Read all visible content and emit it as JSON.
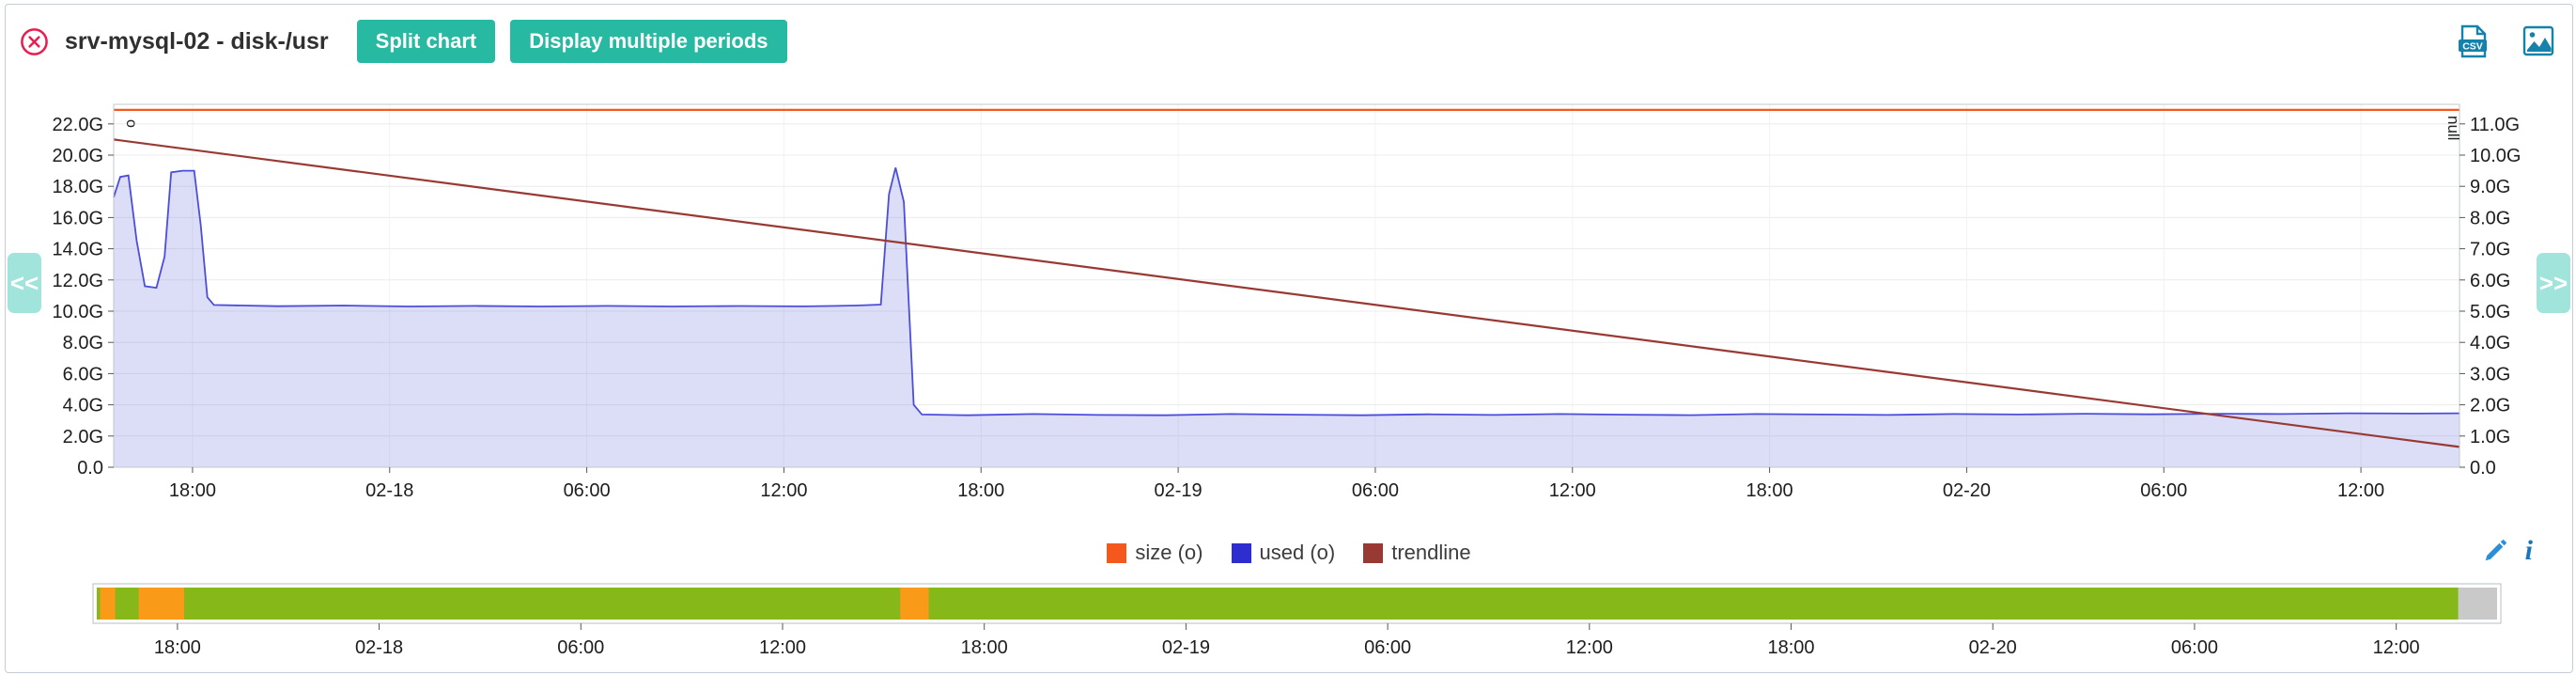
{
  "theme": {
    "accent_teal": "#27b9a1",
    "close_red": "#e81e50",
    "export_icon_blue": "#1482aa",
    "tool_icon_blue": "#2a8fd8",
    "ok_green": "#85b818",
    "warning_orange": "#fa9a19",
    "nodata_gray": "#c9c9c9"
  },
  "header": {
    "title": "srv-mysql-02 - disk-/usr",
    "split_chart_label": "Split chart",
    "multiple_periods_label": "Display multiple periods",
    "export": {
      "csv_label": "CSV"
    }
  },
  "nav": {
    "prev_label": "<<",
    "next_label": ">>"
  },
  "tools": {
    "info_glyph": "i"
  },
  "legend": {
    "items": [
      {
        "id": "size",
        "label": "size (o)",
        "color": "#f4581c"
      },
      {
        "id": "used",
        "label": "used (o)",
        "color": "#2d2dd0"
      },
      {
        "id": "trendline",
        "label": "trendline",
        "color": "#993933"
      }
    ]
  },
  "chart_data": {
    "type": "area",
    "title": "srv-mysql-02 - disk-/usr",
    "x_domain": [
      0,
      71.4
    ],
    "x_ticks": [
      {
        "t": 2.4,
        "label": "18:00"
      },
      {
        "t": 8.4,
        "label": "02-18"
      },
      {
        "t": 14.4,
        "label": "06:00"
      },
      {
        "t": 20.4,
        "label": "12:00"
      },
      {
        "t": 26.4,
        "label": "18:00"
      },
      {
        "t": 32.4,
        "label": "02-19"
      },
      {
        "t": 38.4,
        "label": "06:00"
      },
      {
        "t": 44.4,
        "label": "12:00"
      },
      {
        "t": 50.4,
        "label": "18:00"
      },
      {
        "t": 56.4,
        "label": "02-20"
      },
      {
        "t": 62.4,
        "label": "06:00"
      },
      {
        "t": 68.4,
        "label": "12:00"
      }
    ],
    "y_left": {
      "unit_label": "o",
      "min": 0,
      "max": 23.2,
      "ticks": [
        [
          0,
          "0.0"
        ],
        [
          2,
          "2.0G"
        ],
        [
          4,
          "4.0G"
        ],
        [
          6,
          "6.0G"
        ],
        [
          8,
          "8.0G"
        ],
        [
          10,
          "10.0G"
        ],
        [
          12,
          "12.0G"
        ],
        [
          14,
          "14.0G"
        ],
        [
          16,
          "16.0G"
        ],
        [
          18,
          "18.0G"
        ],
        [
          20,
          "20.0G"
        ],
        [
          22,
          "22.0G"
        ]
      ]
    },
    "y_right": {
      "axis_label": "null",
      "min": 0,
      "max": 11.6,
      "ticks": [
        [
          0,
          "0.0"
        ],
        [
          1,
          "1.0G"
        ],
        [
          2,
          "2.0G"
        ],
        [
          3,
          "3.0G"
        ],
        [
          4,
          "4.0G"
        ],
        [
          5,
          "5.0G"
        ],
        [
          6,
          "6.0G"
        ],
        [
          7,
          "7.0G"
        ],
        [
          8,
          "8.0G"
        ],
        [
          9,
          "9.0G"
        ],
        [
          10,
          "10.0G"
        ],
        [
          11,
          "11.0G"
        ]
      ]
    },
    "series": [
      {
        "id": "used",
        "name": "used (o)",
        "type": "area",
        "color": "#4d4ddb",
        "fill": "rgba(80,86,214,0.20)",
        "width": 1.8,
        "points": [
          [
            0,
            17.3
          ],
          [
            0.2,
            18.6
          ],
          [
            0.45,
            18.7
          ],
          [
            0.7,
            14.5
          ],
          [
            0.95,
            11.6
          ],
          [
            1.3,
            11.5
          ],
          [
            1.55,
            13.5
          ],
          [
            1.75,
            18.9
          ],
          [
            2.1,
            19.0
          ],
          [
            2.45,
            19.0
          ],
          [
            2.65,
            15.5
          ],
          [
            2.85,
            10.9
          ],
          [
            3.05,
            10.4
          ],
          [
            5,
            10.32
          ],
          [
            7,
            10.36
          ],
          [
            9,
            10.3
          ],
          [
            11,
            10.34
          ],
          [
            13,
            10.3
          ],
          [
            15,
            10.34
          ],
          [
            17,
            10.3
          ],
          [
            19,
            10.33
          ],
          [
            21,
            10.31
          ],
          [
            22.6,
            10.36
          ],
          [
            23.35,
            10.42
          ],
          [
            23.6,
            17.5
          ],
          [
            23.8,
            19.2
          ],
          [
            24.05,
            17.0
          ],
          [
            24.35,
            4.0
          ],
          [
            24.6,
            3.38
          ],
          [
            26,
            3.33
          ],
          [
            28,
            3.41
          ],
          [
            30,
            3.35
          ],
          [
            32,
            3.33
          ],
          [
            34,
            3.41
          ],
          [
            36,
            3.37
          ],
          [
            38,
            3.33
          ],
          [
            40,
            3.39
          ],
          [
            42,
            3.35
          ],
          [
            44,
            3.41
          ],
          [
            46,
            3.37
          ],
          [
            48,
            3.34
          ],
          [
            50,
            3.41
          ],
          [
            52,
            3.38
          ],
          [
            54,
            3.35
          ],
          [
            56,
            3.41
          ],
          [
            58,
            3.38
          ],
          [
            60,
            3.43
          ],
          [
            62,
            3.39
          ],
          [
            64,
            3.43
          ],
          [
            66,
            3.41
          ],
          [
            68,
            3.46
          ],
          [
            70,
            3.44
          ],
          [
            71.4,
            3.46
          ]
        ]
      },
      {
        "id": "size",
        "name": "size (o)",
        "type": "line",
        "color": "#f4581c",
        "width": 2.2,
        "points": [
          [
            0,
            22.9
          ],
          [
            71.4,
            22.9
          ]
        ]
      },
      {
        "id": "trendline",
        "name": "trendline",
        "type": "line",
        "color": "#993933",
        "width": 2.2,
        "points": [
          [
            0,
            21.0
          ],
          [
            71.4,
            1.3
          ]
        ]
      }
    ]
  },
  "overview": {
    "segments": [
      {
        "status": "ok",
        "from": 0,
        "to": 70.25,
        "color": "#85b818"
      },
      {
        "status": "warning",
        "from": 0.1,
        "to": 0.55,
        "color": "#fa9a19"
      },
      {
        "status": "warning",
        "from": 1.25,
        "to": 2.6,
        "color": "#fa9a19"
      },
      {
        "status": "warning",
        "from": 23.9,
        "to": 24.75,
        "color": "#fa9a19"
      },
      {
        "status": "unknown",
        "from": 70.25,
        "to": 71.4,
        "color": "#c9c9c9"
      }
    ]
  }
}
